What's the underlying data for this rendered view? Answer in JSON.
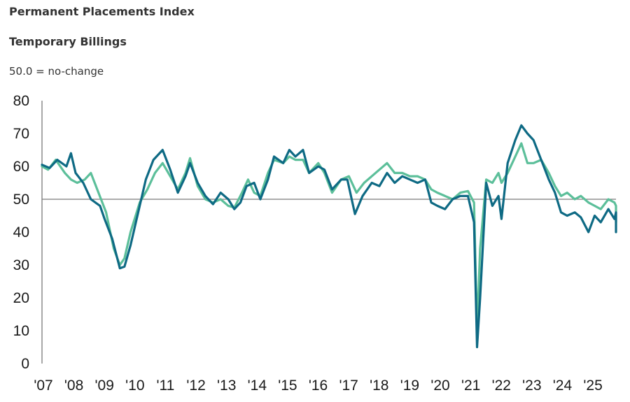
{
  "legend": {
    "permanent": "Permanent Placements Index",
    "temporary": "Temporary Billings"
  },
  "note": "50.0 = no-change",
  "colors": {
    "permanent": "#0e6a84",
    "temporary": "#5cbf9a",
    "axis": "#8c8c8c",
    "reference": "#7a7a7a"
  },
  "chart_data": {
    "type": "line",
    "ylim": [
      0,
      80
    ],
    "yticks": [
      0,
      10,
      20,
      30,
      40,
      50,
      60,
      70,
      80
    ],
    "xlim": [
      2007.0,
      2025.8
    ],
    "xtick_labels": [
      "'07",
      "'08",
      "'09",
      "'10",
      "'11",
      "'12",
      "'13",
      "'14",
      "'15",
      "'16",
      "'17",
      "'18",
      "'19",
      "'20",
      "'21",
      "'22",
      "'23",
      "'24",
      "'25"
    ],
    "xtick_values": [
      2007,
      2008,
      2009,
      2010,
      2011,
      2012,
      2013,
      2014,
      2015,
      2016,
      2017,
      2018,
      2019,
      2020,
      2021,
      2022,
      2023,
      2024,
      2025
    ],
    "reference_line": 50,
    "grid": false,
    "legend_position": "top-left",
    "series": [
      {
        "name": "Permanent Placements Index",
        "color": "#0e6a84",
        "points": [
          [
            2007.0,
            60.5
          ],
          [
            2007.25,
            59.5
          ],
          [
            2007.5,
            62
          ],
          [
            2007.8,
            60
          ],
          [
            2007.95,
            64
          ],
          [
            2008.1,
            58
          ],
          [
            2008.35,
            55
          ],
          [
            2008.6,
            50
          ],
          [
            2008.9,
            48
          ],
          [
            2009.05,
            44
          ],
          [
            2009.3,
            38
          ],
          [
            2009.55,
            29
          ],
          [
            2009.7,
            29.5
          ],
          [
            2009.9,
            36
          ],
          [
            2010.2,
            48
          ],
          [
            2010.4,
            56
          ],
          [
            2010.65,
            62
          ],
          [
            2010.95,
            65
          ],
          [
            2011.2,
            59
          ],
          [
            2011.45,
            52
          ],
          [
            2011.7,
            57
          ],
          [
            2011.85,
            61
          ],
          [
            2012.1,
            55
          ],
          [
            2012.35,
            51
          ],
          [
            2012.6,
            48.5
          ],
          [
            2012.85,
            52
          ],
          [
            2013.1,
            50
          ],
          [
            2013.3,
            47
          ],
          [
            2013.5,
            49
          ],
          [
            2013.7,
            54
          ],
          [
            2013.95,
            55
          ],
          [
            2014.15,
            50
          ],
          [
            2014.4,
            56
          ],
          [
            2014.6,
            63
          ],
          [
            2014.9,
            61
          ],
          [
            2015.1,
            65
          ],
          [
            2015.3,
            63
          ],
          [
            2015.55,
            65
          ],
          [
            2015.75,
            58
          ],
          [
            2016.05,
            60
          ],
          [
            2016.25,
            59
          ],
          [
            2016.5,
            53
          ],
          [
            2016.8,
            56
          ],
          [
            2017.0,
            56
          ],
          [
            2017.25,
            45.5
          ],
          [
            2017.5,
            51
          ],
          [
            2017.8,
            55
          ],
          [
            2018.05,
            54
          ],
          [
            2018.3,
            58
          ],
          [
            2018.55,
            55
          ],
          [
            2018.8,
            57
          ],
          [
            2019.05,
            56
          ],
          [
            2019.3,
            55
          ],
          [
            2019.55,
            56
          ],
          [
            2019.75,
            49
          ],
          [
            2019.95,
            48
          ],
          [
            2020.2,
            47
          ],
          [
            2020.45,
            50
          ],
          [
            2020.7,
            51
          ],
          [
            2020.95,
            51
          ],
          [
            2021.15,
            43
          ],
          [
            2021.25,
            5
          ],
          [
            2021.35,
            20
          ],
          [
            2021.55,
            55
          ],
          [
            2021.75,
            48
          ],
          [
            2021.95,
            51
          ],
          [
            2022.05,
            44
          ],
          [
            2022.25,
            61
          ],
          [
            2022.5,
            68
          ],
          [
            2022.7,
            72.5
          ],
          [
            2022.9,
            70
          ],
          [
            2023.1,
            68
          ],
          [
            2023.35,
            62
          ],
          [
            2023.6,
            56
          ],
          [
            2023.8,
            52
          ],
          [
            2024.0,
            46
          ],
          [
            2024.2,
            45
          ],
          [
            2024.45,
            46
          ],
          [
            2024.65,
            44.5
          ],
          [
            2024.9,
            40
          ],
          [
            2025.1,
            45
          ],
          [
            2025.3,
            43
          ],
          [
            2025.55,
            47
          ],
          [
            2025.75,
            44
          ],
          [
            2026.0,
            46
          ],
          [
            2026.2,
            40
          ],
          [
            2026.45,
            42
          ],
          [
            2026.65,
            40
          ]
        ]
      },
      {
        "name": "Temporary Billings",
        "color": "#5cbf9a",
        "points": [
          [
            2007.0,
            60
          ],
          [
            2007.2,
            59
          ],
          [
            2007.45,
            62
          ],
          [
            2007.75,
            58
          ],
          [
            2007.95,
            56
          ],
          [
            2008.15,
            55
          ],
          [
            2008.4,
            56
          ],
          [
            2008.6,
            58
          ],
          [
            2008.85,
            52
          ],
          [
            2009.1,
            46
          ],
          [
            2009.35,
            35
          ],
          [
            2009.55,
            30
          ],
          [
            2009.7,
            32
          ],
          [
            2009.9,
            40
          ],
          [
            2010.2,
            49
          ],
          [
            2010.45,
            53
          ],
          [
            2010.7,
            58
          ],
          [
            2010.95,
            61
          ],
          [
            2011.2,
            57
          ],
          [
            2011.45,
            53
          ],
          [
            2011.7,
            58
          ],
          [
            2011.85,
            62.5
          ],
          [
            2012.1,
            54
          ],
          [
            2012.35,
            50
          ],
          [
            2012.6,
            49
          ],
          [
            2012.85,
            50
          ],
          [
            2013.1,
            48
          ],
          [
            2013.3,
            47.5
          ],
          [
            2013.55,
            52
          ],
          [
            2013.75,
            56
          ],
          [
            2013.95,
            52
          ],
          [
            2014.15,
            51
          ],
          [
            2014.4,
            58
          ],
          [
            2014.6,
            62
          ],
          [
            2014.9,
            61
          ],
          [
            2015.1,
            63
          ],
          [
            2015.3,
            62
          ],
          [
            2015.55,
            62
          ],
          [
            2015.75,
            58
          ],
          [
            2016.05,
            61
          ],
          [
            2016.25,
            58
          ],
          [
            2016.5,
            52
          ],
          [
            2016.8,
            56
          ],
          [
            2017.05,
            57
          ],
          [
            2017.3,
            52
          ],
          [
            2017.55,
            55
          ],
          [
            2017.8,
            57
          ],
          [
            2018.05,
            59
          ],
          [
            2018.3,
            61
          ],
          [
            2018.55,
            58
          ],
          [
            2018.8,
            58
          ],
          [
            2019.05,
            57
          ],
          [
            2019.3,
            57
          ],
          [
            2019.55,
            56
          ],
          [
            2019.75,
            53
          ],
          [
            2019.95,
            52
          ],
          [
            2020.2,
            51
          ],
          [
            2020.45,
            50
          ],
          [
            2020.7,
            52
          ],
          [
            2020.95,
            52.5
          ],
          [
            2021.15,
            49
          ],
          [
            2021.25,
            10
          ],
          [
            2021.35,
            35
          ],
          [
            2021.55,
            56
          ],
          [
            2021.75,
            55
          ],
          [
            2021.95,
            58
          ],
          [
            2022.05,
            55
          ],
          [
            2022.25,
            58
          ],
          [
            2022.5,
            63
          ],
          [
            2022.7,
            67
          ],
          [
            2022.9,
            61
          ],
          [
            2023.1,
            61
          ],
          [
            2023.35,
            62
          ],
          [
            2023.6,
            58
          ],
          [
            2023.8,
            54
          ],
          [
            2024.0,
            51
          ],
          [
            2024.2,
            52
          ],
          [
            2024.45,
            50
          ],
          [
            2024.65,
            51
          ],
          [
            2024.9,
            49
          ],
          [
            2025.1,
            48
          ],
          [
            2025.3,
            47
          ],
          [
            2025.55,
            50
          ],
          [
            2025.75,
            49
          ],
          [
            2026.0,
            48
          ],
          [
            2026.2,
            43
          ],
          [
            2026.45,
            45.5
          ],
          [
            2026.65,
            44.5
          ]
        ]
      }
    ]
  }
}
